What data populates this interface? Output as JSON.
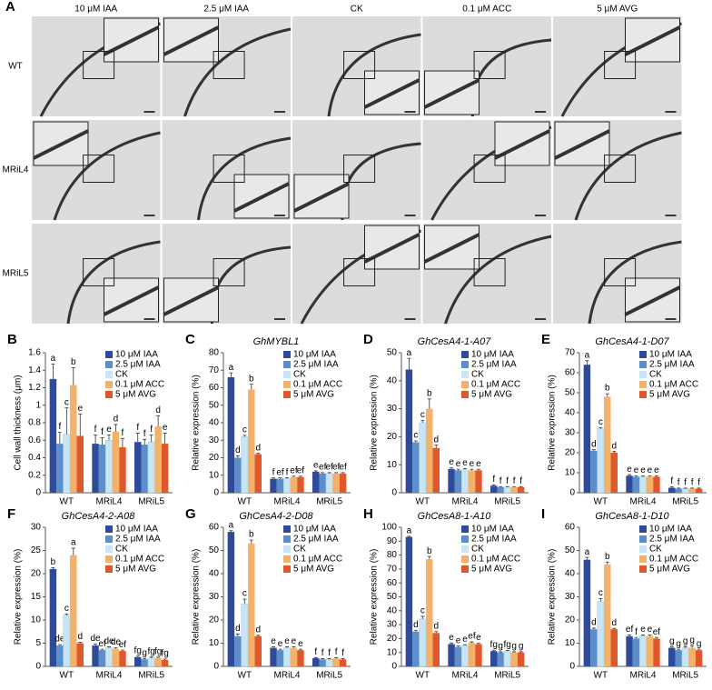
{
  "panel_a": {
    "letter": "A",
    "columns": [
      "10 μM IAA",
      "2.5 μM IAA",
      "CK",
      "0.1 μM ACC",
      "5 μM AVG"
    ],
    "rows": [
      "WT",
      "MRiL4",
      "MRiL5"
    ]
  },
  "chart_data": [
    {
      "type": "bar",
      "letter": "B",
      "ylabel": "Cell wall thickness (μm)",
      "categories": [
        "WT",
        "MRiL4",
        "MRiL5"
      ],
      "ylim": [
        0,
        1.6
      ],
      "yticks": [
        0,
        0.2,
        0.4,
        0.6,
        0.8,
        1,
        1.2,
        1.4,
        1.6
      ],
      "series": [
        {
          "name": "10 μM IAA",
          "color": "#2e4a9a",
          "values": [
            1.3,
            0.56,
            0.58
          ],
          "errors": [
            0.17,
            0.1,
            0.1
          ],
          "sig_labels": [
            "a",
            "f",
            "f"
          ]
        },
        {
          "name": "2.5 μM IAA",
          "color": "#5b8ecb",
          "values": [
            0.56,
            0.55,
            0.55
          ],
          "errors": [
            0.13,
            0.08,
            0.06
          ],
          "sig_labels": [
            "f",
            "f",
            "f"
          ]
        },
        {
          "name": "CK",
          "color": "#c9e5f5",
          "values": [
            0.67,
            0.6,
            0.58
          ],
          "errors": [
            0.3,
            0.06,
            0.08
          ],
          "sig_labels": [
            "c",
            "e",
            "f"
          ]
        },
        {
          "name": "0.1 μM ACC",
          "color": "#f4b16a",
          "values": [
            1.23,
            0.7,
            0.76
          ],
          "errors": [
            0.2,
            0.08,
            0.12
          ],
          "sig_labels": [
            "b",
            "d",
            "d"
          ]
        },
        {
          "name": "5 μM AVG",
          "color": "#e0572b",
          "values": [
            0.65,
            0.52,
            0.56
          ],
          "errors": [
            0.25,
            0.1,
            0.12
          ],
          "sig_labels": [
            "e",
            "f",
            "e"
          ]
        }
      ]
    },
    {
      "type": "bar",
      "letter": "C",
      "title": "GhMYBL1",
      "ylabel": "Relative expression (%)",
      "categories": [
        "WT",
        "MRiL4",
        "MRiL5"
      ],
      "ylim": [
        0,
        80
      ],
      "yticks": [
        0,
        10,
        20,
        30,
        40,
        50,
        60,
        70,
        80
      ],
      "series": [
        {
          "name": "10 μM IAA",
          "color": "#2e4a9a",
          "values": [
            66,
            8,
            12
          ],
          "errors": [
            2.5,
            0.5,
            0.5
          ],
          "sig_labels": [
            "a",
            "f",
            "e"
          ]
        },
        {
          "name": "2.5 μM IAA",
          "color": "#5b8ecb",
          "values": [
            20,
            8,
            11
          ],
          "errors": [
            1,
            0.5,
            0.5
          ],
          "sig_labels": [
            "d",
            "ef",
            "ef"
          ]
        },
        {
          "name": "CK",
          "color": "#c9e5f5",
          "values": [
            32,
            8,
            11
          ],
          "errors": [
            0.8,
            0.5,
            0.5
          ],
          "sig_labels": [
            "c",
            "f",
            "ef"
          ]
        },
        {
          "name": "0.1 μM ACC",
          "color": "#f4b16a",
          "values": [
            59,
            9,
            11
          ],
          "errors": [
            3,
            0.5,
            0.5
          ],
          "sig_labels": [
            "b",
            "ef",
            "ef"
          ]
        },
        {
          "name": "5 μM AVG",
          "color": "#e0572b",
          "values": [
            22,
            9,
            11
          ],
          "errors": [
            0.5,
            0.5,
            0.5
          ],
          "sig_labels": [
            "d",
            "ef",
            "ef"
          ]
        }
      ]
    },
    {
      "type": "bar",
      "letter": "D",
      "title": "GhCesA4-1-A07",
      "ylabel": "Relative expression (%)",
      "categories": [
        "WT",
        "MRiL4",
        "MRiL5"
      ],
      "ylim": [
        0,
        50
      ],
      "yticks": [
        0,
        10,
        20,
        30,
        40,
        50
      ],
      "series": [
        {
          "name": "10 μM IAA",
          "color": "#2e4a9a",
          "values": [
            44,
            8.5,
            2.5
          ],
          "errors": [
            4,
            0.4,
            0.3
          ],
          "sig_labels": [
            "a",
            "e",
            "f"
          ]
        },
        {
          "name": "2.5 μM IAA",
          "color": "#5b8ecb",
          "values": [
            18,
            8,
            2
          ],
          "errors": [
            0.5,
            0.4,
            0.2
          ],
          "sig_labels": [
            "c",
            "e",
            "f"
          ]
        },
        {
          "name": "CK",
          "color": "#c9e5f5",
          "values": [
            25,
            8.2,
            2
          ],
          "errors": [
            0.8,
            0.4,
            0.2
          ],
          "sig_labels": [
            "c",
            "e",
            "f"
          ]
        },
        {
          "name": "0.1 μM ACC",
          "color": "#f4b16a",
          "values": [
            30,
            8,
            2
          ],
          "errors": [
            3.5,
            0.4,
            0.2
          ],
          "sig_labels": [
            "b",
            "e",
            "f"
          ]
        },
        {
          "name": "5 μM AVG",
          "color": "#e0572b",
          "values": [
            16,
            8,
            2
          ],
          "errors": [
            1,
            0.4,
            0.2
          ],
          "sig_labels": [
            "d",
            "e",
            "f"
          ]
        }
      ]
    },
    {
      "type": "bar",
      "letter": "E",
      "title": "GhCesA4-1-D07",
      "ylabel": "Relative expression (%)",
      "categories": [
        "WT",
        "MRiL4",
        "MRiL5"
      ],
      "ylim": [
        0,
        70
      ],
      "yticks": [
        0,
        10,
        20,
        30,
        40,
        50,
        60,
        70
      ],
      "series": [
        {
          "name": "10 μM IAA",
          "color": "#2e4a9a",
          "values": [
            64,
            8.5,
            2.5
          ],
          "errors": [
            2,
            0.5,
            0.5
          ],
          "sig_labels": [
            "a",
            "e",
            "f"
          ]
        },
        {
          "name": "2.5 μM IAA",
          "color": "#5b8ecb",
          "values": [
            21,
            8,
            2
          ],
          "errors": [
            0.5,
            0.4,
            0.3
          ],
          "sig_labels": [
            "d",
            "e",
            "f"
          ]
        },
        {
          "name": "CK",
          "color": "#c9e5f5",
          "values": [
            32,
            8,
            2
          ],
          "errors": [
            0.6,
            0.4,
            0.3
          ],
          "sig_labels": [
            "c",
            "e",
            "f"
          ]
        },
        {
          "name": "0.1 μM ACC",
          "color": "#f4b16a",
          "values": [
            48,
            8,
            2
          ],
          "errors": [
            1.5,
            0.4,
            0.3
          ],
          "sig_labels": [
            "b",
            "e",
            "f"
          ]
        },
        {
          "name": "5 μM AVG",
          "color": "#e0572b",
          "values": [
            20,
            8,
            2
          ],
          "errors": [
            0.6,
            0.4,
            0.3
          ],
          "sig_labels": [
            "d",
            "e",
            "f"
          ]
        }
      ]
    },
    {
      "type": "bar",
      "letter": "F",
      "title": "GhCesA4-2-A08",
      "ylabel": "Relative expression (%)",
      "categories": [
        "WT",
        "MRiL4",
        "MRiL5"
      ],
      "ylim": [
        0,
        30
      ],
      "yticks": [
        0,
        5,
        10,
        15,
        20,
        25,
        30
      ],
      "series": [
        {
          "name": "10 μM IAA",
          "color": "#2e4a9a",
          "values": [
            21,
            4.5,
            2
          ],
          "errors": [
            0.3,
            0.3,
            0.2
          ],
          "sig_labels": [
            "b",
            "de",
            "fg"
          ]
        },
        {
          "name": "2.5 μM IAA",
          "color": "#5b8ecb",
          "values": [
            4.5,
            3.5,
            1.5
          ],
          "errors": [
            0.2,
            0.2,
            0.2
          ],
          "sig_labels": [
            "de",
            "ef",
            "g"
          ]
        },
        {
          "name": "CK",
          "color": "#c9e5f5",
          "values": [
            11,
            4,
            1.8
          ],
          "errors": [
            0.3,
            0.2,
            0.2
          ],
          "sig_labels": [
            "c",
            "de",
            "fg"
          ]
        },
        {
          "name": "0.1 μM ACC",
          "color": "#f4b16a",
          "values": [
            24,
            3.8,
            1.8
          ],
          "errors": [
            1.5,
            0.2,
            0.2
          ],
          "sig_labels": [
            "a",
            "de",
            "fg"
          ]
        },
        {
          "name": "5 μM AVG",
          "color": "#e0572b",
          "values": [
            5,
            3.3,
            1.4
          ],
          "errors": [
            0.2,
            0.2,
            0.2
          ],
          "sig_labels": [
            "d",
            "ef",
            "fg"
          ]
        }
      ]
    },
    {
      "type": "bar",
      "letter": "G",
      "title": "GhCesA4-2-D08",
      "ylabel": "Relative expression (%)",
      "categories": [
        "WT",
        "MRiL4",
        "MRiL5"
      ],
      "ylim": [
        0,
        60
      ],
      "yticks": [
        0,
        10,
        20,
        30,
        40,
        50,
        60
      ],
      "series": [
        {
          "name": "10 μM IAA",
          "color": "#2e4a9a",
          "values": [
            58,
            8,
            3.5
          ],
          "errors": [
            0.5,
            0.4,
            0.3
          ],
          "sig_labels": [
            "a",
            "e",
            "f"
          ]
        },
        {
          "name": "2.5 μM IAA",
          "color": "#5b8ecb",
          "values": [
            13,
            7,
            3
          ],
          "errors": [
            1,
            0.4,
            0.3
          ],
          "sig_labels": [
            "d",
            "e",
            "f"
          ]
        },
        {
          "name": "CK",
          "color": "#c9e5f5",
          "values": [
            27,
            8,
            3
          ],
          "errors": [
            2,
            0.4,
            0.3
          ],
          "sig_labels": [
            "c",
            "e",
            "f"
          ]
        },
        {
          "name": "0.1 μM ACC",
          "color": "#f4b16a",
          "values": [
            53,
            8,
            3.5
          ],
          "errors": [
            1.5,
            0.4,
            0.3
          ],
          "sig_labels": [
            "b",
            "e",
            "f"
          ]
        },
        {
          "name": "5 μM AVG",
          "color": "#e0572b",
          "values": [
            13,
            7,
            3
          ],
          "errors": [
            0.4,
            0.4,
            0.3
          ],
          "sig_labels": [
            "d",
            "e",
            "f"
          ]
        }
      ]
    },
    {
      "type": "bar",
      "letter": "H",
      "title": "GhCesA8-1-A10",
      "ylabel": "Relative expression (%)",
      "categories": [
        "WT",
        "MRiL4",
        "MRiL5"
      ],
      "ylim": [
        0,
        100
      ],
      "yticks": [
        0,
        10,
        20,
        30,
        40,
        50,
        60,
        70,
        80,
        90,
        100
      ],
      "series": [
        {
          "name": "10 μM IAA",
          "color": "#2e4a9a",
          "values": [
            93,
            16,
            11
          ],
          "errors": [
            0.5,
            0.8,
            0.6
          ],
          "sig_labels": [
            "a",
            "e",
            "fg"
          ]
        },
        {
          "name": "2.5 μM IAA",
          "color": "#5b8ecb",
          "values": [
            25,
            14,
            10
          ],
          "errors": [
            1,
            0.6,
            0.5
          ],
          "sig_labels": [
            "d",
            "e",
            "g"
          ]
        },
        {
          "name": "CK",
          "color": "#c9e5f5",
          "values": [
            34,
            15,
            11
          ],
          "errors": [
            2,
            0.6,
            0.5
          ],
          "sig_labels": [
            "c",
            "e",
            "fg"
          ]
        },
        {
          "name": "0.1 μM ACC",
          "color": "#f4b16a",
          "values": [
            77,
            17,
            10
          ],
          "errors": [
            2,
            0.6,
            0.5
          ],
          "sig_labels": [
            "b",
            "ef",
            "g"
          ]
        },
        {
          "name": "5 μM AVG",
          "color": "#e0572b",
          "values": [
            24,
            16,
            10
          ],
          "errors": [
            1,
            0.6,
            0.5
          ],
          "sig_labels": [
            "d",
            "e",
            "g"
          ]
        }
      ]
    },
    {
      "type": "bar",
      "letter": "I",
      "title": "GhCesA8-1-D10",
      "ylabel": "Relative expression (%)",
      "categories": [
        "WT",
        "MRiL4",
        "MRiL5"
      ],
      "ylim": [
        0,
        60
      ],
      "yticks": [
        0,
        10,
        20,
        30,
        40,
        50,
        60
      ],
      "series": [
        {
          "name": "10 μM IAA",
          "color": "#2e4a9a",
          "values": [
            46,
            13,
            8
          ],
          "errors": [
            1,
            0.5,
            0.4
          ],
          "sig_labels": [
            "a",
            "ef",
            "g"
          ]
        },
        {
          "name": "2.5 μM IAA",
          "color": "#5b8ecb",
          "values": [
            16,
            12,
            7
          ],
          "errors": [
            0.5,
            0.5,
            0.4
          ],
          "sig_labels": [
            "d",
            "f",
            "g"
          ]
        },
        {
          "name": "CK",
          "color": "#c9e5f5",
          "values": [
            28,
            13,
            8
          ],
          "errors": [
            1.2,
            0.5,
            0.4
          ],
          "sig_labels": [
            "c",
            "e",
            "g"
          ]
        },
        {
          "name": "0.1 μM ACC",
          "color": "#f4b16a",
          "values": [
            44,
            13,
            8
          ],
          "errors": [
            1,
            0.5,
            0.8
          ],
          "sig_labels": [
            "b",
            "e",
            "g"
          ]
        },
        {
          "name": "5 μM AVG",
          "color": "#e0572b",
          "values": [
            16,
            12,
            7
          ],
          "errors": [
            0.4,
            0.5,
            0.4
          ],
          "sig_labels": [
            "d",
            "ef",
            "g"
          ]
        }
      ]
    }
  ]
}
